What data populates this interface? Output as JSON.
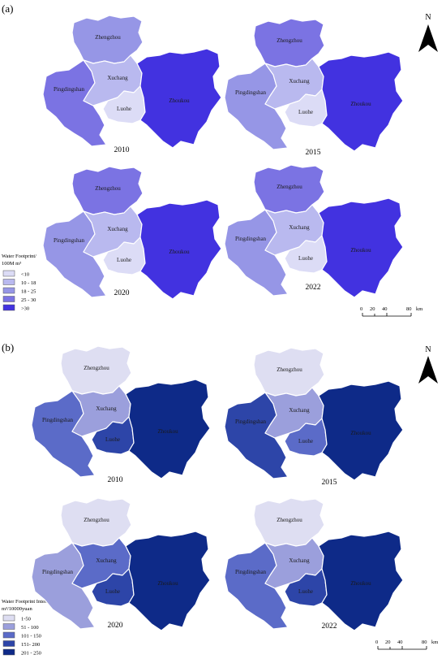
{
  "panels": [
    {
      "tag": "(a)",
      "legend": {
        "title_line1": "Water Footprint/",
        "title_line2": "100M m³",
        "classes": [
          {
            "label": "<10",
            "color": "#dcdcf6"
          },
          {
            "label": "10 - 18",
            "color": "#b9b9ef"
          },
          {
            "label": "18 - 25",
            "color": "#9696e6"
          },
          {
            "label": "25 - 30",
            "color": "#7b73e3"
          },
          {
            "label": ">30",
            "color": "#4232e0"
          }
        ]
      },
      "maps": [
        {
          "year": "2010",
          "classes": {
            "Zhengzhou": 2,
            "Pingdingshan": 3,
            "Xuchang": 1,
            "Luohe": 0,
            "Zhoukou": 4
          }
        },
        {
          "year": "2015",
          "classes": {
            "Zhengzhou": 3,
            "Pingdingshan": 2,
            "Xuchang": 1,
            "Luohe": 0,
            "Zhoukou": 4
          }
        },
        {
          "year": "2020",
          "classes": {
            "Zhengzhou": 3,
            "Pingdingshan": 2,
            "Xuchang": 1,
            "Luohe": 0,
            "Zhoukou": 4
          }
        },
        {
          "year": "2022",
          "classes": {
            "Zhengzhou": 3,
            "Pingdingshan": 2,
            "Xuchang": 1,
            "Luohe": 0,
            "Zhoukou": 4
          }
        }
      ]
    },
    {
      "tag": "(b)",
      "legend": {
        "title_line1": "Water Footprint Intensity/",
        "title_line2": "m³/10000yuan",
        "classes": [
          {
            "label": "1-50",
            "color": "#dedef2"
          },
          {
            "label": "51 - 100",
            "color": "#9b9fdc"
          },
          {
            "label": "101 - 150",
            "color": "#5b6bc8"
          },
          {
            "label": "151- 200",
            "color": "#2d45a8"
          },
          {
            "label": "201 - 250",
            "color": "#0e2a88"
          }
        ]
      },
      "maps": [
        {
          "year": "2010",
          "classes": {
            "Zhengzhou": 0,
            "Pingdingshan": 2,
            "Xuchang": 1,
            "Luohe": 3,
            "Zhoukou": 4
          }
        },
        {
          "year": "2015",
          "classes": {
            "Zhengzhou": 0,
            "Pingdingshan": 3,
            "Xuchang": 1,
            "Luohe": 2,
            "Zhoukou": 4
          }
        },
        {
          "year": "2020",
          "classes": {
            "Zhengzhou": 0,
            "Pingdingshan": 1,
            "Xuchang": 2,
            "Luohe": 3,
            "Zhoukou": 4
          }
        },
        {
          "year": "2022",
          "classes": {
            "Zhengzhou": 0,
            "Pingdingshan": 2,
            "Xuchang": 1,
            "Luohe": 3,
            "Zhoukou": 4
          }
        }
      ]
    }
  ],
  "region_names": [
    "Zhengzhou",
    "Pingdingshan",
    "Xuchang",
    "Luohe",
    "Zhoukou"
  ],
  "north_label": "N",
  "scale_bar": {
    "ticks": [
      "0",
      "20",
      "40",
      "80"
    ],
    "unit": "km"
  }
}
